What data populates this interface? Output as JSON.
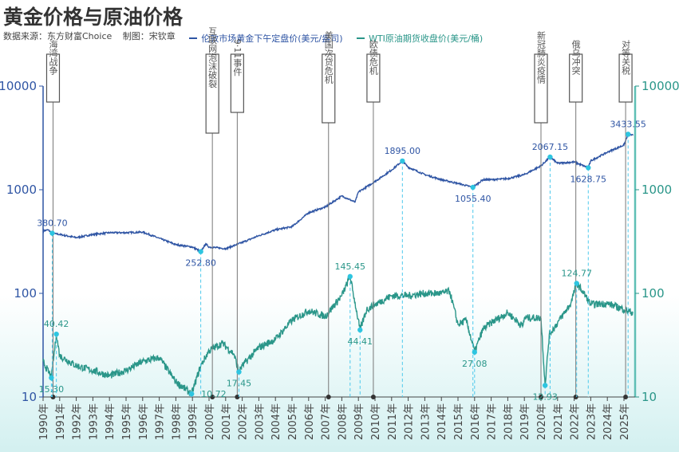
{
  "chart_data": {
    "type": "line",
    "title": "黄金价格与原油价格",
    "source": "数据来源：东方财富Choice",
    "author": "制图：宋钦章",
    "y_scale": "log",
    "ylim_left": [
      10,
      10000
    ],
    "ylim_right": [
      10,
      10000
    ],
    "y_ticks_left": [
      "10",
      "100",
      "1000",
      "10000"
    ],
    "y_ticks_right": [
      "10",
      "100",
      "1000",
      "10000"
    ],
    "x_range": [
      1990,
      2025.6
    ],
    "x_ticks": [
      "1990年",
      "1991年",
      "1992年",
      "1993年",
      "1994年",
      "1995年",
      "1996年",
      "1997年",
      "1998年",
      "1999年",
      "2000年",
      "2001年",
      "2002年",
      "2003年",
      "2004年",
      "2005年",
      "2006年",
      "2007年",
      "2008年",
      "2009年",
      "2010年",
      "2011年",
      "2012年",
      "2013年",
      "2014年",
      "2015年",
      "2016年",
      "2017年",
      "2018年",
      "2019年",
      "2020年",
      "2021年",
      "2022年",
      "2023年",
      "2024年",
      "2025年"
    ],
    "grid": false,
    "legend_position": "top",
    "colors": {
      "gold": "#2f55a4",
      "oil": "#2a9689",
      "marker": "#2ec5e0",
      "event_line": "#777777"
    },
    "series": [
      {
        "name": "伦敦市场黄金下午定盘价(美元/盎司)",
        "axis": "left",
        "x": [
          1990,
          1990.3,
          1990.55,
          1991,
          1992,
          1993,
          1994,
          1995,
          1996,
          1997,
          1998,
          1999,
          1999.5,
          1999.8,
          2000,
          2001,
          2002,
          2003,
          2004,
          2005,
          2006,
          2007,
          2008,
          2008.8,
          2009,
          2010,
          2011,
          2011.65,
          2012,
          2013,
          2014,
          2015,
          2015.9,
          2016.5,
          2017,
          2018,
          2019,
          2020,
          2020.55,
          2021,
          2022,
          2022.85,
          2023,
          2024,
          2025,
          2025.25,
          2025.55
        ],
        "values": [
          400,
          410,
          380.7,
          370,
          345,
          370,
          385,
          385,
          390,
          340,
          295,
          280,
          252.8,
          300,
          280,
          270,
          310,
          360,
          410,
          440,
          600,
          680,
          870,
          760,
          950,
          1200,
          1550,
          1895,
          1650,
          1400,
          1250,
          1150,
          1055.4,
          1250,
          1250,
          1280,
          1400,
          1700,
          2067.15,
          1800,
          1850,
          1628.75,
          1900,
          2300,
          2700,
          3433.55,
          3350
        ]
      },
      {
        "name": "WTI原油期货收盘价(美元/桶)",
        "axis": "right",
        "x": [
          1990,
          1990.5,
          1990.8,
          1991,
          1992,
          1993,
          1994,
          1995,
          1996,
          1997,
          1998,
          1998.95,
          1999.5,
          2000,
          2000.8,
          2001.5,
          2001.8,
          2002,
          2003,
          2004,
          2005,
          2006,
          2007,
          2008,
          2008.5,
          2009.1,
          2009.5,
          2010,
          2011,
          2012,
          2013,
          2014,
          2014.5,
          2015,
          2015.5,
          2016,
          2016.5,
          2017,
          2018,
          2018.9,
          2019,
          2020,
          2020.25,
          2020.5,
          2021,
          2021.8,
          2022.15,
          2022.5,
          2023,
          2024,
          2025,
          2025.55
        ],
        "values": [
          22,
          15.3,
          40.42,
          25,
          20,
          18,
          16,
          18,
          22,
          24,
          14,
          10.72,
          20,
          28,
          33,
          26,
          17.45,
          20,
          30,
          36,
          55,
          68,
          60,
          95,
          145.45,
          44.41,
          70,
          78,
          95,
          95,
          100,
          100,
          105,
          50,
          55,
          27.08,
          45,
          52,
          65,
          48,
          58,
          58,
          12.93,
          40,
          52,
          80,
          124.77,
          105,
          78,
          80,
          70,
          65
        ]
      }
    ],
    "annotations": [
      {
        "series": 0,
        "x": 1990.55,
        "value": 380.7,
        "label": "380.70",
        "pos": "above"
      },
      {
        "series": 0,
        "x": 1999.5,
        "value": 252.8,
        "label": "252.80",
        "pos": "below"
      },
      {
        "series": 0,
        "x": 2011.65,
        "value": 1895.0,
        "label": "1895.00",
        "pos": "above"
      },
      {
        "series": 0,
        "x": 2015.9,
        "value": 1055.4,
        "label": "1055.40",
        "pos": "below"
      },
      {
        "series": 0,
        "x": 2020.55,
        "value": 2067.15,
        "label": "2067.15",
        "pos": "above"
      },
      {
        "series": 0,
        "x": 2022.85,
        "value": 1628.75,
        "label": "1628.75",
        "pos": "below"
      },
      {
        "series": 0,
        "x": 2025.25,
        "value": 3433.55,
        "label": "3433.55",
        "pos": "above"
      },
      {
        "series": 1,
        "x": 1990.5,
        "value": 15.3,
        "label": "15.30",
        "pos": "below"
      },
      {
        "series": 1,
        "x": 1990.8,
        "value": 40.42,
        "label": "40.42",
        "pos": "above"
      },
      {
        "series": 1,
        "x": 1998.95,
        "value": 10.72,
        "label": "10.72",
        "pos": "right"
      },
      {
        "series": 1,
        "x": 2001.8,
        "value": 17.45,
        "label": "17.45",
        "pos": "below"
      },
      {
        "series": 1,
        "x": 2008.5,
        "value": 145.45,
        "label": "145.45",
        "pos": "above"
      },
      {
        "series": 1,
        "x": 2009.1,
        "value": 44.41,
        "label": "44.41",
        "pos": "below"
      },
      {
        "series": 1,
        "x": 2016.0,
        "value": 27.08,
        "label": "27.08",
        "pos": "below"
      },
      {
        "series": 1,
        "x": 2020.25,
        "value": 12.93,
        "label": "12.93",
        "pos": "below"
      },
      {
        "series": 1,
        "x": 2022.15,
        "value": 124.77,
        "label": "124.77",
        "pos": "above"
      }
    ],
    "events": [
      {
        "x": 1990.6,
        "label": "海湾战争"
      },
      {
        "x": 2000.2,
        "label": "互联网泡沫破裂"
      },
      {
        "x": 2001.7,
        "label": "9·11事件"
      },
      {
        "x": 2007.2,
        "label": "美国次贷危机"
      },
      {
        "x": 2009.9,
        "label": "欧债危机"
      },
      {
        "x": 2020.0,
        "label": "新冠肺炎疫情"
      },
      {
        "x": 2022.1,
        "label": "俄乌冲突"
      },
      {
        "x": 2025.1,
        "label": "对等关税"
      }
    ]
  }
}
